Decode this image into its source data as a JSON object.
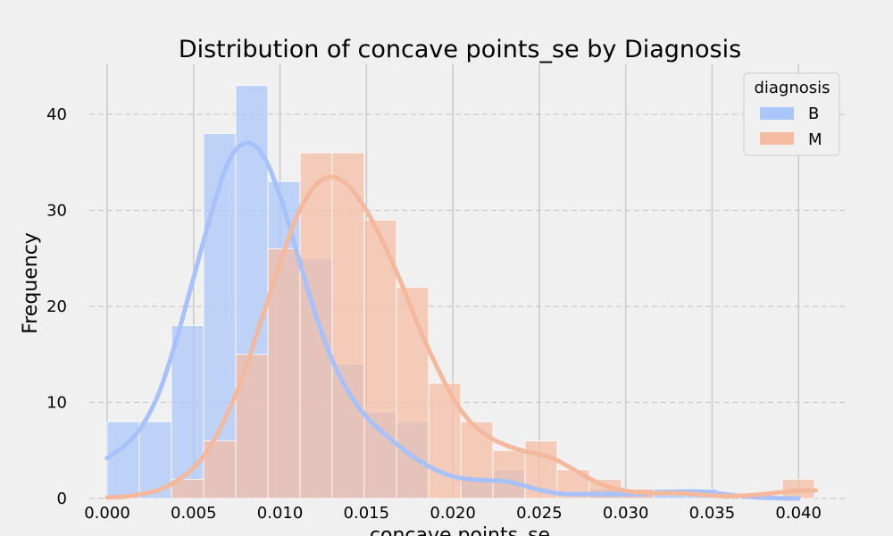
{
  "chart_data": {
    "type": "histogram",
    "title": "Distribution of concave points_se by Diagnosis",
    "xlabel": "concave points_se",
    "ylabel": "Frequency",
    "xlim": [
      0.0,
      0.041
    ],
    "ylim": [
      0,
      45
    ],
    "x_ticks": [
      "0.000",
      "0.005",
      "0.010",
      "0.015",
      "0.020",
      "0.025",
      "0.030",
      "0.035",
      "0.040"
    ],
    "y_ticks": [
      "0",
      "10",
      "20",
      "30",
      "40"
    ],
    "grid": true,
    "bin_edges": [
      0.0,
      0.00186,
      0.00372,
      0.00558,
      0.00744,
      0.0093,
      0.01116,
      0.01302,
      0.01488,
      0.01674,
      0.0186,
      0.02046,
      0.02232,
      0.02418,
      0.02604,
      0.0279,
      0.02976,
      0.03162,
      0.03348,
      0.03534,
      0.0372,
      0.03906,
      0.04092
    ],
    "series": [
      {
        "name": "B",
        "color": "#abc6fb",
        "line_color": "#a7c2fb",
        "counts": [
          8,
          8,
          18,
          38,
          43,
          33,
          25,
          14,
          9,
          8,
          0,
          2,
          3,
          0,
          0,
          1,
          1,
          1,
          1,
          0,
          0,
          0
        ],
        "kde": [
          [
            0.0,
            4.2
          ],
          [
            0.001,
            5.5
          ],
          [
            0.002,
            7.5
          ],
          [
            0.003,
            11.0
          ],
          [
            0.004,
            16.5
          ],
          [
            0.005,
            23.0
          ],
          [
            0.006,
            29.5
          ],
          [
            0.007,
            35.0
          ],
          [
            0.008,
            37.0
          ],
          [
            0.009,
            35.8
          ],
          [
            0.01,
            31.5
          ],
          [
            0.011,
            25.5
          ],
          [
            0.012,
            19.5
          ],
          [
            0.013,
            14.5
          ],
          [
            0.014,
            11.0
          ],
          [
            0.015,
            8.5
          ],
          [
            0.016,
            6.8
          ],
          [
            0.017,
            5.3
          ],
          [
            0.018,
            4.0
          ],
          [
            0.019,
            3.0
          ],
          [
            0.02,
            2.3
          ],
          [
            0.021,
            2.0
          ],
          [
            0.022,
            1.9
          ],
          [
            0.023,
            1.8
          ],
          [
            0.024,
            1.4
          ],
          [
            0.025,
            0.9
          ],
          [
            0.026,
            0.55
          ],
          [
            0.027,
            0.45
          ],
          [
            0.028,
            0.45
          ],
          [
            0.029,
            0.45
          ],
          [
            0.03,
            0.45
          ],
          [
            0.031,
            0.5
          ],
          [
            0.032,
            0.6
          ],
          [
            0.033,
            0.72
          ],
          [
            0.034,
            0.75
          ],
          [
            0.035,
            0.6
          ],
          [
            0.036,
            0.4
          ],
          [
            0.037,
            0.2
          ],
          [
            0.038,
            0.08
          ],
          [
            0.039,
            0.02
          ],
          [
            0.04,
            0.0
          ]
        ]
      },
      {
        "name": "M",
        "color": "#f5bca2",
        "line_color": "#f4b89c",
        "counts": [
          0,
          0,
          2,
          6,
          15,
          26,
          36,
          36,
          29,
          22,
          12,
          8,
          5,
          6,
          3,
          2,
          1,
          0,
          0,
          0,
          0,
          2
        ],
        "kde": [
          [
            0.0,
            0.1
          ],
          [
            0.001,
            0.2
          ],
          [
            0.002,
            0.45
          ],
          [
            0.003,
            0.9
          ],
          [
            0.004,
            1.8
          ],
          [
            0.005,
            3.2
          ],
          [
            0.006,
            5.5
          ],
          [
            0.007,
            9.0
          ],
          [
            0.008,
            13.5
          ],
          [
            0.009,
            19.0
          ],
          [
            0.01,
            24.5
          ],
          [
            0.011,
            29.5
          ],
          [
            0.012,
            32.5
          ],
          [
            0.013,
            33.5
          ],
          [
            0.014,
            32.5
          ],
          [
            0.015,
            30.0
          ],
          [
            0.016,
            26.5
          ],
          [
            0.017,
            22.5
          ],
          [
            0.018,
            18.0
          ],
          [
            0.019,
            14.0
          ],
          [
            0.02,
            10.5
          ],
          [
            0.021,
            8.0
          ],
          [
            0.022,
            6.5
          ],
          [
            0.023,
            5.6
          ],
          [
            0.024,
            5.0
          ],
          [
            0.025,
            4.6
          ],
          [
            0.026,
            4.0
          ],
          [
            0.027,
            3.0
          ],
          [
            0.028,
            2.0
          ],
          [
            0.029,
            1.2
          ],
          [
            0.03,
            0.8
          ],
          [
            0.031,
            0.6
          ],
          [
            0.032,
            0.55
          ],
          [
            0.033,
            0.55
          ],
          [
            0.034,
            0.45
          ],
          [
            0.035,
            0.3
          ],
          [
            0.036,
            0.25
          ],
          [
            0.037,
            0.3
          ],
          [
            0.038,
            0.45
          ],
          [
            0.039,
            0.65
          ],
          [
            0.04,
            0.8
          ],
          [
            0.041,
            0.85
          ]
        ]
      }
    ],
    "legend": {
      "title": "diagnosis",
      "position": "top-right",
      "entries": [
        "B",
        "M"
      ]
    }
  }
}
